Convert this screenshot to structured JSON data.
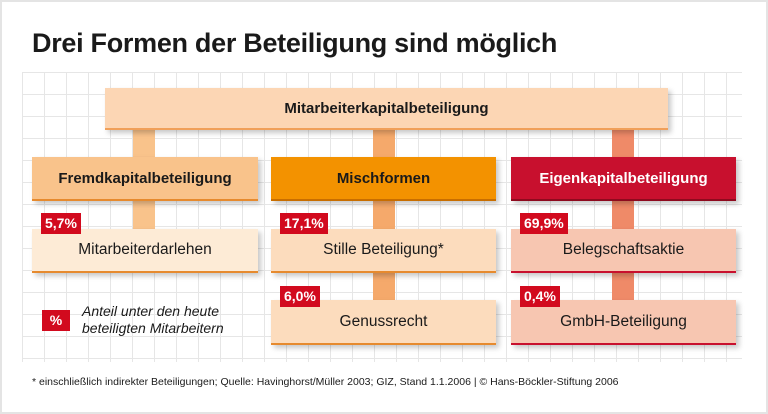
{
  "title": "Drei Formen der Beteiligung sind möglich",
  "root": {
    "label": "Mitarbeiterkapitalbeteiligung",
    "color": "#fcd6b4"
  },
  "columns": [
    {
      "label": "Fremdkapitalbeteiligung",
      "color": "#f9c38b",
      "text_color": "#1a1a1a",
      "items": [
        {
          "label": "Mitarbeiterdarlehen",
          "share": "5,7%"
        }
      ]
    },
    {
      "label": "Mischformen",
      "color": "#f39200",
      "text_color": "#1a1a1a",
      "items": [
        {
          "label": "Stille Beteiligung*",
          "share": "17,1%"
        },
        {
          "label": "Genussrecht",
          "share": "6,0%"
        }
      ]
    },
    {
      "label": "Eigenkapitalbeteiligung",
      "color": "#c8102e",
      "text_color": "#ffffff",
      "items": [
        {
          "label": "Belegschaftsaktie",
          "share": "69,9%"
        },
        {
          "label": "GmbH-Beteiligung",
          "share": "0,4%"
        }
      ]
    }
  ],
  "legend": {
    "symbol": "%",
    "text": "Anteil unter den heute beteiligten Mitarbeitern"
  },
  "footer": "* einschließlich indirekter Beteiligungen; Quelle: Havinghorst/Müller 2003; GIZ, Stand 1.1.2006 | © Hans-Böckler-Stiftung 2006"
}
